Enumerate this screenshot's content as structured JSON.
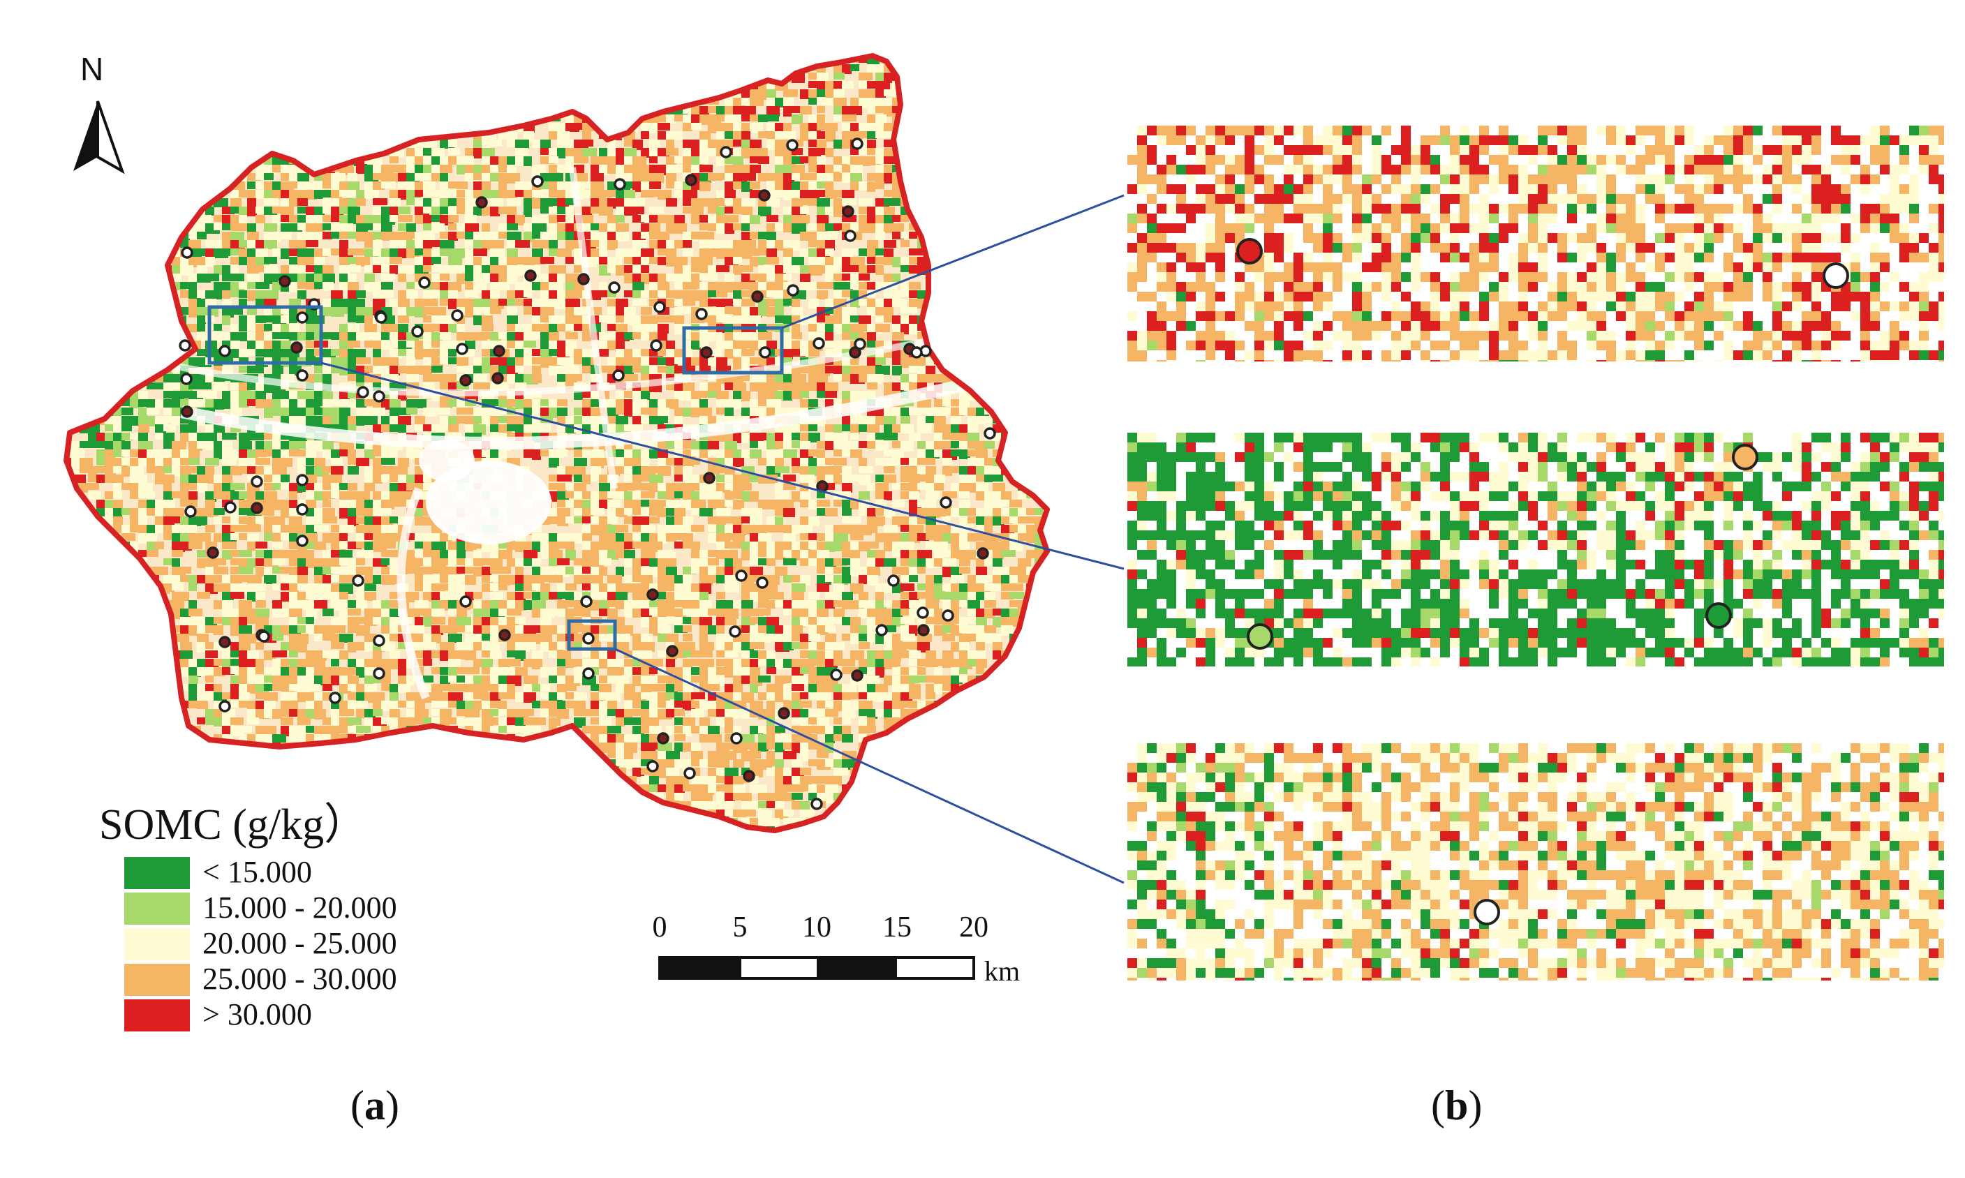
{
  "north_label": "N",
  "legend": {
    "title": "SOMC (g/kg）",
    "items": [
      {
        "label": "< 15.000",
        "color": "#1e9a37"
      },
      {
        "label": "15.000 - 20.000",
        "color": "#a6d86a"
      },
      {
        "label": "20.000 - 25.000",
        "color": "#fffbd2"
      },
      {
        "label": "25.000 - 30.000",
        "color": "#f6b465"
      },
      {
        "label": "> 30.000",
        "color": "#dc1f1f"
      }
    ]
  },
  "scale_bar": {
    "ticks": [
      "0",
      "5",
      "10",
      "15",
      "20"
    ],
    "unit": "km"
  },
  "captions": {
    "a": {
      "open": "(",
      "letter": "a",
      "close": ")"
    },
    "b": {
      "open": "(",
      "letter": "b",
      "close": ")"
    }
  },
  "colors": {
    "boundary": "#d62222",
    "inset_box": "#2e6ca8",
    "leader_line": "#2c4f9e",
    "sample_marker": "#222222"
  }
}
